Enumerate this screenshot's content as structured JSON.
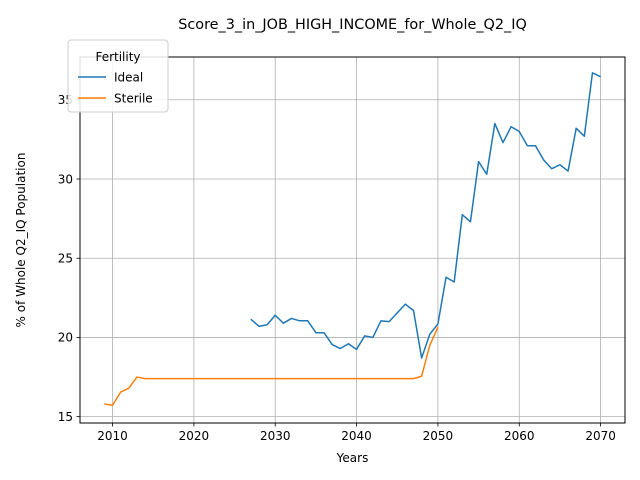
{
  "chart_data": {
    "type": "line",
    "title": "Score_3_in_JOB_HIGH_INCOME_for_Whole_Q2_IQ",
    "xlabel": "Years",
    "ylabel": "% of Whole Q2_IQ Population",
    "xlim": [
      2006,
      2073
    ],
    "ylim": [
      14.6,
      37.7
    ],
    "xticks": [
      2010,
      2020,
      2030,
      2040,
      2050,
      2060,
      2070
    ],
    "yticks": [
      15,
      20,
      25,
      30,
      35
    ],
    "grid": true,
    "legend": {
      "title": "Fertility",
      "placement": "top-left"
    },
    "series": [
      {
        "name": "Ideal",
        "color": "#1f77b4",
        "x": [
          2027,
          2028,
          2029,
          2030,
          2031,
          2032,
          2033,
          2034,
          2035,
          2036,
          2037,
          2038,
          2039,
          2040,
          2041,
          2042,
          2043,
          2044,
          2045,
          2046,
          2047,
          2048,
          2049,
          2050,
          2051,
          2052,
          2053,
          2054,
          2055,
          2056,
          2057,
          2058,
          2059,
          2060,
          2061,
          2062,
          2063,
          2064,
          2065,
          2066,
          2067,
          2068,
          2069,
          2070
        ],
        "y": [
          21.15,
          20.7,
          20.8,
          21.4,
          20.9,
          21.2,
          21.05,
          21.05,
          20.3,
          20.3,
          19.55,
          19.3,
          19.6,
          19.25,
          20.1,
          20.0,
          21.05,
          21.0,
          21.55,
          22.1,
          21.7,
          18.7,
          20.2,
          20.85,
          23.8,
          23.5,
          27.75,
          27.3,
          31.1,
          30.3,
          33.5,
          32.3,
          33.3,
          33.0,
          32.1,
          32.1,
          31.2,
          30.65,
          30.9,
          30.5,
          33.2,
          32.7,
          36.7,
          36.45
        ]
      },
      {
        "name": "Sterile",
        "color": "#ff7f0e",
        "x": [
          2009,
          2010,
          2011,
          2012,
          2013,
          2014,
          2015,
          2016,
          2017,
          2018,
          2019,
          2020,
          2021,
          2022,
          2023,
          2024,
          2025,
          2026,
          2027,
          2028,
          2029,
          2030,
          2031,
          2032,
          2033,
          2034,
          2035,
          2036,
          2037,
          2038,
          2039,
          2040,
          2041,
          2042,
          2043,
          2044,
          2045,
          2046,
          2047,
          2048,
          2049,
          2050
        ],
        "y": [
          15.8,
          15.72,
          16.55,
          16.8,
          17.5,
          17.4,
          17.4,
          17.4,
          17.4,
          17.4,
          17.4,
          17.4,
          17.4,
          17.4,
          17.4,
          17.4,
          17.4,
          17.4,
          17.4,
          17.4,
          17.4,
          17.4,
          17.4,
          17.4,
          17.4,
          17.4,
          17.4,
          17.4,
          17.4,
          17.4,
          17.4,
          17.4,
          17.4,
          17.4,
          17.4,
          17.4,
          17.4,
          17.4,
          17.4,
          17.55,
          19.5,
          20.65
        ]
      }
    ]
  }
}
